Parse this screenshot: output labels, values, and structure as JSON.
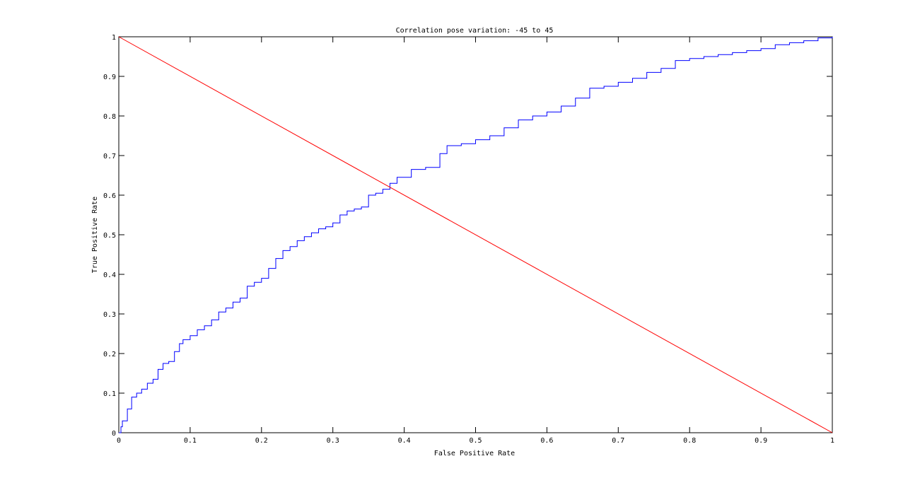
{
  "chart_data": {
    "type": "line",
    "title": "Correlation pose variation: -45 to 45",
    "xlabel": "False Positive Rate",
    "ylabel": "True Positive Rate",
    "xlim": [
      0,
      1
    ],
    "ylim": [
      0,
      1
    ],
    "xticks": [
      0,
      0.1,
      0.2,
      0.3,
      0.4,
      0.5,
      0.6,
      0.7,
      0.8,
      0.9,
      1
    ],
    "yticks": [
      0,
      0.1,
      0.2,
      0.3,
      0.4,
      0.5,
      0.6,
      0.7,
      0.8,
      0.9,
      1
    ],
    "xtick_labels": [
      "0",
      "0.1",
      "0.2",
      "0.3",
      "0.4",
      "0.5",
      "0.6",
      "0.7",
      "0.8",
      "0.9",
      "1"
    ],
    "ytick_labels": [
      "0",
      "0.1",
      "0.2",
      "0.3",
      "0.4",
      "0.5",
      "0.6",
      "0.7",
      "0.8",
      "0.9",
      "1"
    ],
    "grid": false,
    "series": [
      {
        "color": "#0000ff",
        "style": "step",
        "x": [
          0,
          0.003,
          0.005,
          0.012,
          0.018,
          0.025,
          0.032,
          0.04,
          0.048,
          0.055,
          0.062,
          0.07,
          0.078,
          0.085,
          0.09,
          0.1,
          0.11,
          0.12,
          0.13,
          0.14,
          0.15,
          0.16,
          0.17,
          0.18,
          0.19,
          0.2,
          0.21,
          0.22,
          0.23,
          0.24,
          0.25,
          0.26,
          0.27,
          0.28,
          0.29,
          0.3,
          0.31,
          0.32,
          0.33,
          0.34,
          0.35,
          0.36,
          0.37,
          0.38,
          0.39,
          0.41,
          0.43,
          0.45,
          0.46,
          0.48,
          0.5,
          0.52,
          0.54,
          0.56,
          0.58,
          0.6,
          0.62,
          0.64,
          0.66,
          0.68,
          0.7,
          0.72,
          0.74,
          0.76,
          0.78,
          0.8,
          0.82,
          0.84,
          0.86,
          0.88,
          0.9,
          0.92,
          0.94,
          0.96,
          0.98,
          1.0
        ],
        "y": [
          0,
          0.015,
          0.03,
          0.06,
          0.09,
          0.1,
          0.11,
          0.125,
          0.135,
          0.16,
          0.175,
          0.18,
          0.205,
          0.225,
          0.235,
          0.245,
          0.26,
          0.27,
          0.285,
          0.305,
          0.315,
          0.33,
          0.34,
          0.37,
          0.38,
          0.39,
          0.415,
          0.44,
          0.46,
          0.47,
          0.485,
          0.495,
          0.505,
          0.515,
          0.52,
          0.53,
          0.55,
          0.56,
          0.565,
          0.57,
          0.6,
          0.605,
          0.615,
          0.63,
          0.645,
          0.665,
          0.67,
          0.705,
          0.725,
          0.73,
          0.74,
          0.75,
          0.77,
          0.79,
          0.8,
          0.81,
          0.825,
          0.845,
          0.87,
          0.875,
          0.885,
          0.895,
          0.91,
          0.92,
          0.94,
          0.945,
          0.95,
          0.955,
          0.96,
          0.965,
          0.97,
          0.98,
          0.985,
          0.99,
          0.997,
          1.0
        ]
      },
      {
        "color": "#ff0000",
        "style": "line",
        "x": [
          0,
          1
        ],
        "y": [
          1,
          0
        ]
      }
    ]
  }
}
